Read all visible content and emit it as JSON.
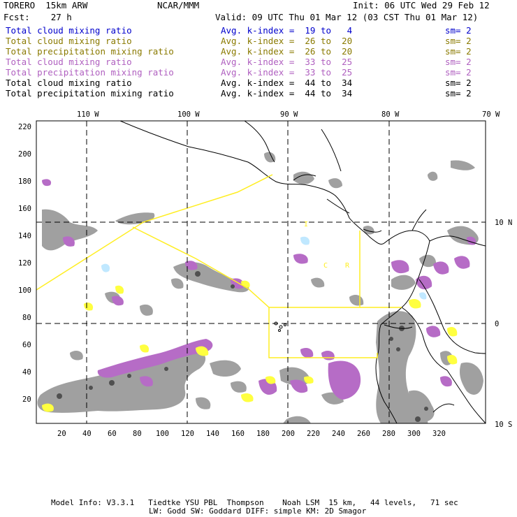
{
  "header": {
    "model": "TORERO  15km ARW",
    "org": "NCAR/MMM",
    "init": "Init: 06 UTC Wed 29 Feb 12",
    "fcst": "Fcst:    27 h",
    "valid": "Valid: 09 UTC Thu 01 Mar 12 (03 CST Thu 01 Mar 12)"
  },
  "legend_rows": [
    {
      "field": "Total cloud mixing ratio",
      "kindex": "Avg. k-index =  19 to   4",
      "sm": "sm= 2",
      "color": "#0000cc"
    },
    {
      "field": "Total cloud mixing ratio",
      "kindex": "Avg. k-index =  26 to  20",
      "sm": "sm= 2",
      "color": "#8a7a00"
    },
    {
      "field": "Total precipitation mixing ratio",
      "kindex": "Avg. k-index =  26 to  20",
      "sm": "sm= 2",
      "color": "#8a7a00"
    },
    {
      "field": "Total cloud mixing ratio",
      "kindex": "Avg. k-index =  33 to  25",
      "sm": "sm= 2",
      "color": "#b060c0"
    },
    {
      "field": "Total precipitation mixing ratio",
      "kindex": "Avg. k-index =  33 to  25",
      "sm": "sm= 2",
      "color": "#b060c0"
    },
    {
      "field": "Total cloud mixing ratio",
      "kindex": "Avg. k-index =  44 to  34",
      "sm": "sm= 2",
      "color": "#000000"
    },
    {
      "field": "Total precipitation mixing ratio",
      "kindex": "Avg. k-index =  44 to  34",
      "sm": "sm= 2",
      "color": "#000000"
    }
  ],
  "axes": {
    "lon_labels": [
      "110 W",
      "100 W",
      "90 W",
      "80 W",
      "70 W"
    ],
    "lat_labels": [
      "10 N",
      "0",
      "10 S"
    ],
    "y_ticks": [
      "220",
      "200",
      "180",
      "160",
      "140",
      "120",
      "100",
      "80",
      "60",
      "40",
      "20"
    ],
    "x_ticks": [
      "20",
      "40",
      "60",
      "80",
      "100",
      "120",
      "140",
      "160",
      "180",
      "200",
      "220",
      "240",
      "260",
      "280",
      "300",
      "320"
    ]
  },
  "map_letters": [
    "I",
    "C",
    "R"
  ],
  "footer": {
    "line1": "Model Info: V3.3.1   Tiedtke YSU PBL  Thompson    Noah LSM  15 km,   44 levels,   71 sec",
    "line2": "LW: Godd SW: Goddard DIFF: simple KM: 2D Smagor"
  },
  "colors": {
    "gray": "#a0a0a0",
    "dark_gray": "#505050",
    "magenta": "#b66cc6",
    "yellow": "#ffff40",
    "light_blue": "#c0e8ff",
    "domain_line": "#ffee22"
  }
}
